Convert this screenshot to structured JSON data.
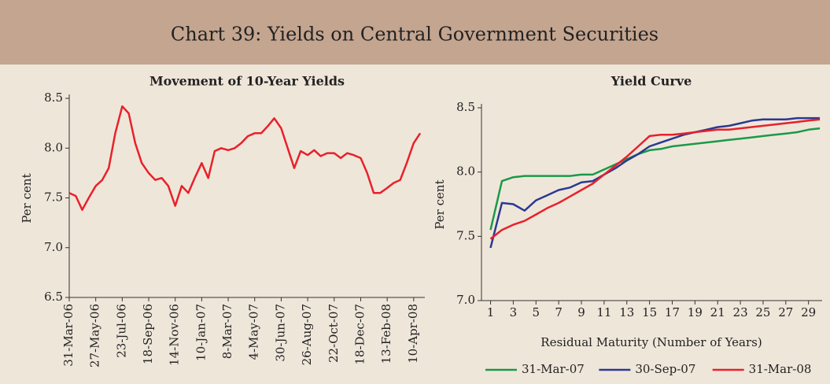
{
  "header": {
    "title": "Chart 39: Yields on Central Government Securities"
  },
  "chart_data": [
    {
      "type": "line",
      "title": "Movement of 10-Year Yields",
      "ylabel": "Per cent",
      "color": "#e8212a",
      "x": [
        "2006-03-31",
        "2006-04-14",
        "2006-04-28",
        "2006-05-12",
        "2006-05-27",
        "2006-06-10",
        "2006-06-24",
        "2006-07-08",
        "2006-07-23",
        "2006-08-06",
        "2006-08-20",
        "2006-09-03",
        "2006-09-18",
        "2006-10-02",
        "2006-10-16",
        "2006-10-30",
        "2006-11-14",
        "2006-11-28",
        "2006-12-12",
        "2006-12-26",
        "2007-01-10",
        "2007-01-24",
        "2007-02-07",
        "2007-02-21",
        "2007-03-08",
        "2007-03-22",
        "2007-04-05",
        "2007-04-19",
        "2007-05-04",
        "2007-05-18",
        "2007-06-01",
        "2007-06-15",
        "2007-06-30",
        "2007-07-14",
        "2007-07-28",
        "2007-08-11",
        "2007-08-26",
        "2007-09-09",
        "2007-09-23",
        "2007-10-07",
        "2007-10-22",
        "2007-11-05",
        "2007-11-19",
        "2007-12-03",
        "2007-12-18",
        "2008-01-01",
        "2008-01-15",
        "2008-01-29",
        "2008-02-13",
        "2008-02-27",
        "2008-03-12",
        "2008-03-26",
        "2008-04-10",
        "2008-04-24"
      ],
      "values": [
        7.55,
        7.52,
        7.38,
        7.5,
        7.62,
        7.68,
        7.8,
        8.15,
        8.42,
        8.35,
        8.05,
        7.85,
        7.75,
        7.68,
        7.7,
        7.62,
        7.42,
        7.62,
        7.55,
        7.7,
        7.85,
        7.7,
        7.97,
        8.0,
        7.98,
        8.0,
        8.05,
        8.12,
        8.15,
        8.15,
        8.22,
        8.3,
        8.2,
        8.0,
        7.8,
        7.97,
        7.93,
        7.98,
        7.92,
        7.95,
        7.95,
        7.9,
        7.95,
        7.93,
        7.9,
        7.75,
        7.55,
        7.55,
        7.6,
        7.65,
        7.68,
        7.85,
        8.05,
        8.15
      ],
      "xlim": [
        "2006-03-31",
        "2008-05-04"
      ],
      "xticks": [
        {
          "value": "2006-03-31",
          "label": "31-Mar-06"
        },
        {
          "value": "2006-05-27",
          "label": "27-May-06"
        },
        {
          "value": "2006-07-23",
          "label": "23-Jul-06"
        },
        {
          "value": "2006-09-18",
          "label": "18-Sep-06"
        },
        {
          "value": "2006-11-14",
          "label": "14-Nov-06"
        },
        {
          "value": "2007-01-10",
          "label": "10-Jan-07"
        },
        {
          "value": "2007-03-08",
          "label": "8-Mar-07"
        },
        {
          "value": "2007-05-04",
          "label": "4-May-07"
        },
        {
          "value": "2007-06-30",
          "label": "30-Jun-07"
        },
        {
          "value": "2007-08-26",
          "label": "26-Aug-07"
        },
        {
          "value": "2007-10-22",
          "label": "22-Oct-07"
        },
        {
          "value": "2007-12-18",
          "label": "18-Dec-07"
        },
        {
          "value": "2008-02-13",
          "label": "13-Feb-08"
        },
        {
          "value": "2008-04-10",
          "label": "10-Apr-08"
        }
      ],
      "ylim": [
        6.5,
        8.5
      ],
      "yticks": [
        6.5,
        {
          "value": 7,
          "label": "7.0"
        },
        7.5,
        {
          "value": 8,
          "label": "8.0"
        },
        8.5
      ]
    },
    {
      "type": "line",
      "title": "Yield Curve",
      "ylabel": "Per cent",
      "xlabel": "Residual Maturity (Number of Years)",
      "legend": "bottom",
      "x": [
        1,
        2,
        3,
        4,
        5,
        6,
        7,
        8,
        9,
        10,
        11,
        12,
        13,
        14,
        15,
        16,
        17,
        18,
        19,
        20,
        21,
        22,
        23,
        24,
        25,
        26,
        27,
        28,
        29,
        30
      ],
      "series": [
        {
          "name": "31-Mar-07",
          "color": "#1a9a48",
          "values": [
            7.55,
            7.93,
            7.96,
            7.97,
            7.97,
            7.97,
            7.97,
            7.97,
            7.98,
            7.98,
            8.02,
            8.06,
            8.1,
            8.14,
            8.17,
            8.18,
            8.2,
            8.21,
            8.22,
            8.23,
            8.24,
            8.25,
            8.26,
            8.27,
            8.28,
            8.29,
            8.3,
            8.31,
            8.33,
            8.34
          ]
        },
        {
          "name": "30-Sep-07",
          "color": "#2b3990",
          "values": [
            7.41,
            7.76,
            7.75,
            7.7,
            7.78,
            7.82,
            7.86,
            7.88,
            7.92,
            7.93,
            7.98,
            8.03,
            8.09,
            8.14,
            8.2,
            8.23,
            8.26,
            8.29,
            8.31,
            8.33,
            8.35,
            8.36,
            8.38,
            8.4,
            8.41,
            8.41,
            8.41,
            8.42,
            8.42,
            8.42
          ]
        },
        {
          "name": "31-Mar-08",
          "color": "#e8212a",
          "values": [
            7.48,
            7.55,
            7.59,
            7.62,
            7.67,
            7.72,
            7.76,
            7.81,
            7.86,
            7.91,
            7.98,
            8.05,
            8.12,
            8.2,
            8.28,
            8.29,
            8.29,
            8.3,
            8.31,
            8.32,
            8.33,
            8.33,
            8.34,
            8.35,
            8.36,
            8.37,
            8.38,
            8.39,
            8.4,
            8.41
          ]
        }
      ],
      "xlim": [
        0.2,
        30.2
      ],
      "xticks": [
        1,
        3,
        5,
        7,
        9,
        11,
        13,
        15,
        17,
        19,
        21,
        23,
        25,
        27,
        29
      ],
      "ylim": [
        7,
        8.5
      ],
      "yticks": [
        {
          "value": 7,
          "label": "7.0"
        },
        7.5,
        {
          "value": 8,
          "label": "8.0"
        },
        8.5
      ]
    }
  ]
}
